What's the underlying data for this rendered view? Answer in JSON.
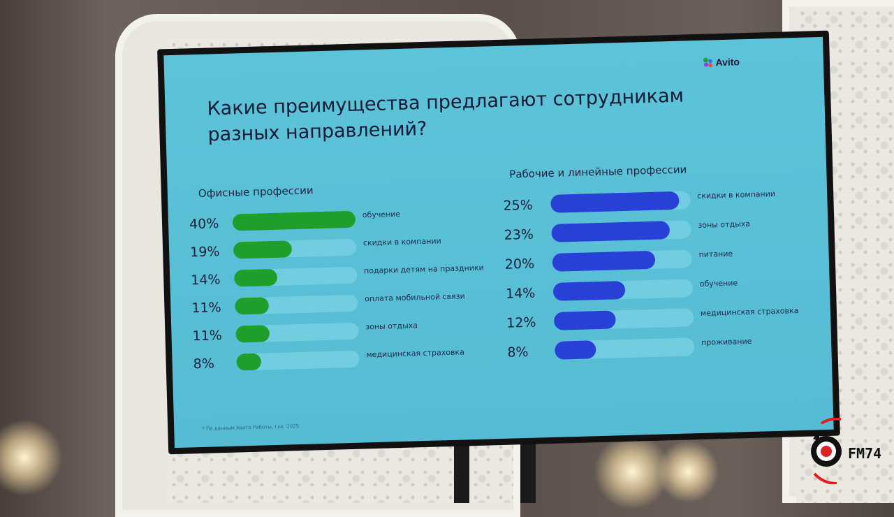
{
  "slide": {
    "brand": "Avito",
    "title_line1": "Какие преимущества предлагают сотрудникам",
    "title_line2": "разных направлений?",
    "footnote": "* По данным Авито Работы, I кв. 2025"
  },
  "colors": {
    "screen_bg": "#5cc3d9",
    "track": "#72cde0",
    "office_bar": "#1e9e2a",
    "worker_bar": "#2741d6"
  },
  "watermark": {
    "logo_text": "FM74"
  },
  "chart_data": [
    {
      "type": "bar",
      "orientation": "horizontal",
      "title": "Офисные профессии",
      "categories": [
        "обучение",
        "скидки в компании",
        "подарки детям на праздники",
        "оплата мобильной связи",
        "зоны отдыха",
        "медицинская страховка"
      ],
      "values": [
        40,
        19,
        14,
        11,
        11,
        8
      ],
      "value_labels": [
        "40%",
        "19%",
        "14%",
        "11%",
        "11%",
        "8%"
      ],
      "xlim": [
        0,
        40
      ],
      "grid": false
    },
    {
      "type": "bar",
      "orientation": "horizontal",
      "title": "Рабочие и линейные профессии",
      "categories": [
        "скидки в компании",
        "зоны отдыха",
        "питание",
        "обучение",
        "медицинская страховка",
        "проживание"
      ],
      "values": [
        25,
        23,
        20,
        14,
        12,
        8
      ],
      "value_labels": [
        "25%",
        "23%",
        "20%",
        "14%",
        "12%",
        "8%"
      ],
      "xlim": [
        0,
        25
      ],
      "grid": false
    }
  ]
}
